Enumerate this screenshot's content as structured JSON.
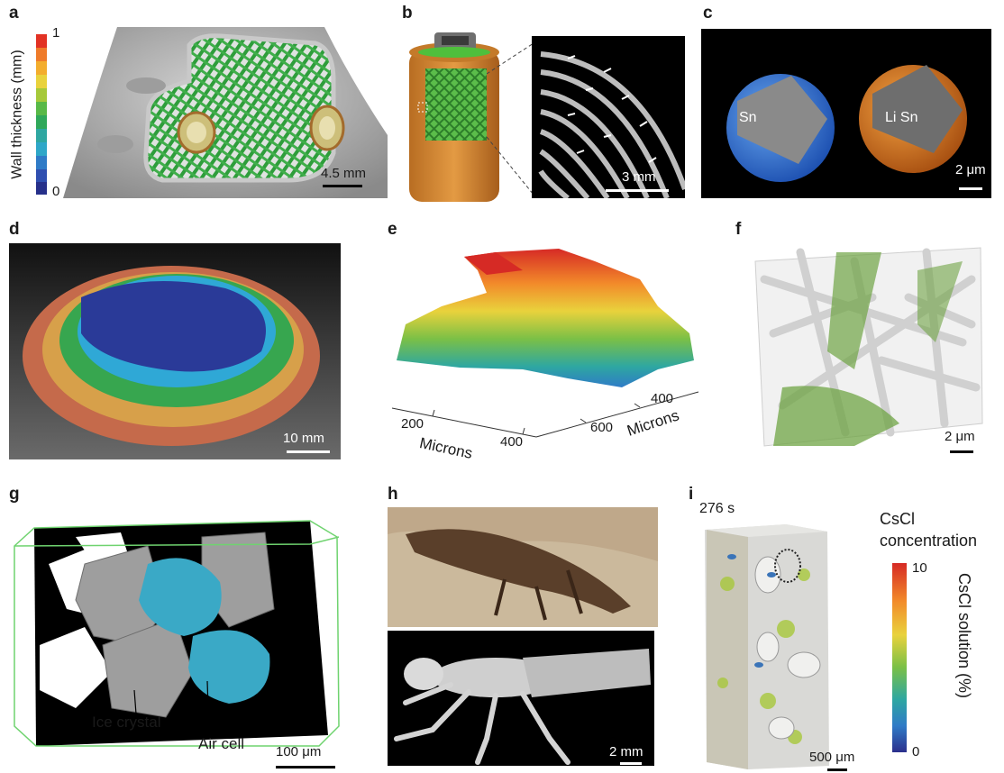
{
  "panels": {
    "a": {
      "letter": "a",
      "colorbar_label": "Wall thickness (mm)",
      "cb_max": "1",
      "cb_min": "0",
      "scale_label": "4.5 mm"
    },
    "b": {
      "letter": "b",
      "scale_label": "3 mm"
    },
    "c": {
      "letter": "c",
      "left_label": "Sn",
      "right_label": "Li Sn",
      "scale_label": "2 μm"
    },
    "d": {
      "letter": "d",
      "scale_label": "10 mm"
    },
    "e": {
      "letter": "e",
      "x_label": "Microns",
      "y_label": "Microns",
      "x_ticks": [
        "200",
        "400"
      ],
      "y_ticks": [
        "600",
        "400"
      ]
    },
    "f": {
      "letter": "f",
      "scale_label": "2 μm"
    },
    "g": {
      "letter": "g",
      "ice_label": "Ice crystal",
      "air_label": "Air cell",
      "scale_label": "100 μm"
    },
    "h": {
      "letter": "h",
      "scale_label": "2 mm"
    },
    "i": {
      "letter": "i",
      "time_label": "276 s",
      "legend_title_1": "CsCl",
      "legend_title_2": "concentration",
      "cb_label": "CsCl solution (%)",
      "cb_max": "10",
      "cb_min": "0",
      "scale_label": "500 μm"
    }
  },
  "colors": {
    "jet_low": "#2b2f8c",
    "jet_high": "#d62a25",
    "panel_bg_dark": "#000000"
  }
}
